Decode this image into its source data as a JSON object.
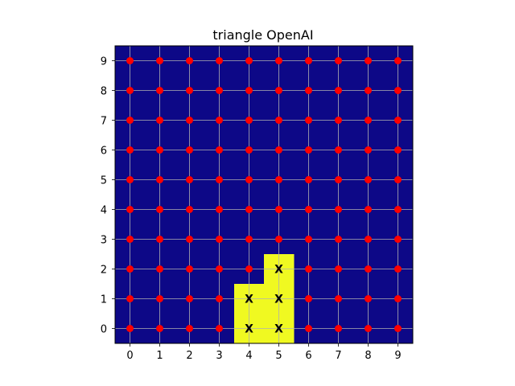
{
  "chart_data": {
    "type": "heatmap",
    "title": "triangle OpenAI",
    "xlabel": "",
    "ylabel": "",
    "x_ticks": [
      "0",
      "1",
      "2",
      "3",
      "4",
      "5",
      "6",
      "7",
      "8",
      "9"
    ],
    "y_ticks": [
      "0",
      "1",
      "2",
      "3",
      "4",
      "5",
      "6",
      "7",
      "8",
      "9"
    ],
    "xlim": [
      -0.5,
      9.5
    ],
    "ylim": [
      -0.5,
      9.5
    ],
    "grid": true,
    "background_color": "#0d0887",
    "highlight_color": "#f0f921",
    "grid_color": "#b0b0b0",
    "point_color": "#ff0000",
    "highlighted_cells": [
      {
        "x": 4,
        "y": 0
      },
      {
        "x": 5,
        "y": 0
      },
      {
        "x": 4,
        "y": 1
      },
      {
        "x": 5,
        "y": 1
      },
      {
        "x": 5,
        "y": 2
      }
    ],
    "marked_cells": [
      {
        "x": 4,
        "y": 0,
        "label": "X"
      },
      {
        "x": 5,
        "y": 0,
        "label": "X"
      },
      {
        "x": 4,
        "y": 1,
        "label": "X"
      },
      {
        "x": 5,
        "y": 1,
        "label": "X"
      },
      {
        "x": 5,
        "y": 2,
        "label": "X"
      }
    ],
    "points_grid": {
      "x_values": [
        0,
        1,
        2,
        3,
        4,
        5,
        6,
        7,
        8,
        9
      ],
      "y_values": [
        0,
        1,
        2,
        3,
        4,
        5,
        6,
        7,
        8,
        9
      ]
    }
  }
}
